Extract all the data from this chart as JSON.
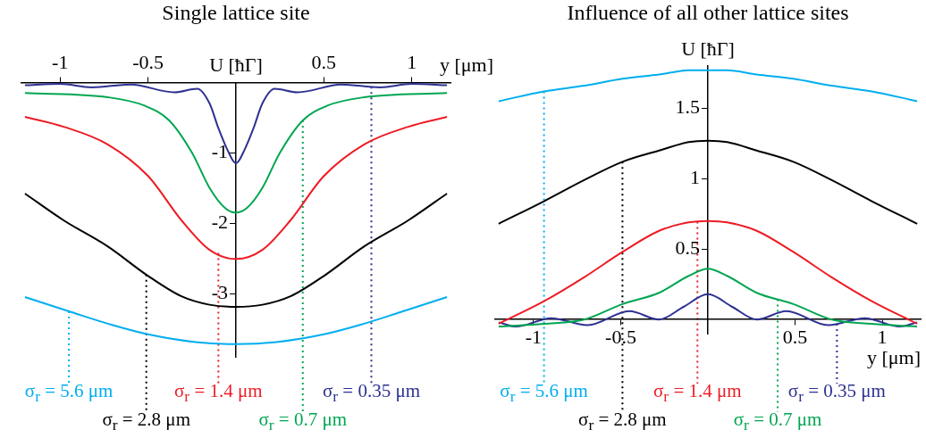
{
  "chart_data": [
    {
      "type": "line",
      "title": "Single lattice site",
      "xlabel": "y [μm]",
      "ylabel": "U [ħΓ]",
      "xlim": [
        -1.22,
        1.22
      ],
      "ylim": [
        -3.9,
        0
      ],
      "xticks": [
        -1,
        -0.5,
        0.5,
        1
      ],
      "yticks": [
        -1,
        -2,
        -3
      ],
      "series": [
        {
          "color": "#2e3192",
          "x": [
            -1.2,
            -1.0,
            -0.82,
            -0.6,
            -0.35,
            -0.22,
            -0.15,
            -0.1,
            -0.05,
            0,
            0.05,
            0.1,
            0.15,
            0.22,
            0.35,
            0.6,
            0.82,
            1.0,
            1.2
          ],
          "values": [
            -0.04,
            -0.02,
            -0.07,
            -0.03,
            -0.14,
            -0.09,
            -0.3,
            -0.65,
            -0.95,
            -1.15,
            -0.95,
            -0.65,
            -0.3,
            -0.09,
            -0.14,
            -0.03,
            -0.07,
            -0.02,
            -0.04
          ]
        },
        {
          "color": "#00a651",
          "x": [
            -1.2,
            -0.73,
            -0.52,
            -0.38,
            -0.25,
            -0.15,
            -0.06,
            0,
            0.06,
            0.15,
            0.25,
            0.38,
            0.52,
            0.73,
            1.2
          ],
          "values": [
            -0.15,
            -0.21,
            -0.33,
            -0.54,
            -1.0,
            -1.5,
            -1.79,
            -1.85,
            -1.79,
            -1.5,
            -1.0,
            -0.54,
            -0.33,
            -0.21,
            -0.15
          ]
        },
        {
          "color": "#ed1c24",
          "x": [
            -1.2,
            -0.98,
            -0.73,
            -0.5,
            -0.31,
            -0.15,
            0,
            0.15,
            0.31,
            0.5,
            0.73,
            0.98,
            1.2
          ],
          "values": [
            -0.49,
            -0.63,
            -0.88,
            -1.33,
            -1.96,
            -2.38,
            -2.51,
            -2.38,
            -1.96,
            -1.33,
            -0.88,
            -0.63,
            -0.49
          ]
        },
        {
          "color": "#000000",
          "x": [
            -1.2,
            -0.98,
            -0.73,
            -0.5,
            -0.31,
            -0.15,
            0,
            0.15,
            0.31,
            0.5,
            0.73,
            0.98,
            1.2
          ],
          "values": [
            -1.58,
            -1.96,
            -2.33,
            -2.75,
            -3.04,
            -3.16,
            -3.19,
            -3.16,
            -3.04,
            -2.75,
            -2.33,
            -1.96,
            -1.58
          ]
        },
        {
          "color": "#00aeef",
          "x": [
            -1.2,
            -0.93,
            -0.7,
            -0.5,
            -0.23,
            0,
            0.23,
            0.5,
            0.7,
            0.93,
            1.2
          ],
          "values": [
            -3.05,
            -3.27,
            -3.45,
            -3.58,
            -3.69,
            -3.72,
            -3.69,
            -3.58,
            -3.45,
            -3.27,
            -3.05
          ]
        }
      ],
      "ref_lines": [
        {
          "axis": "x",
          "value": -0.95,
          "color": "#00aeef",
          "line_style": "dotted"
        },
        {
          "axis": "x",
          "value": -0.51,
          "color": "#000000",
          "line_style": "dotted"
        },
        {
          "axis": "x",
          "value": -0.1,
          "color": "#ed1c24",
          "line_style": "dotted"
        },
        {
          "axis": "x",
          "value": 0.38,
          "color": "#00a651",
          "line_style": "dotted"
        },
        {
          "axis": "x",
          "value": 0.77,
          "color": "#2e3192",
          "line_style": "dotted"
        }
      ],
      "annotations": [
        "σ$_{r}$ = 5.6 μm",
        "σ$_{r}$ = 2.8 μm",
        "σ$_{r}$ = 1.4 μm",
        "σ$_{r}$ = 0.7 μm",
        "σ$_{r}$ = 0.35 μm"
      ]
    },
    {
      "type": "line",
      "title": "Influence of all other lattice sites",
      "xlabel": "y [μm]",
      "ylabel": "U [ħΓ]",
      "xlim": [
        -1.22,
        1.22
      ],
      "ylim": [
        -0.1,
        1.8
      ],
      "xticks": [
        -1,
        -0.5,
        0.5,
        1
      ],
      "yticks": [
        0.5,
        1,
        1.5
      ],
      "series": [
        {
          "color": "#00aeef",
          "x": [
            -1.2,
            -0.94,
            -0.71,
            -0.49,
            -0.28,
            -0.11,
            0,
            0.11,
            0.28,
            0.49,
            0.71,
            0.94,
            1.2
          ],
          "values": [
            1.55,
            1.62,
            1.66,
            1.71,
            1.74,
            1.77,
            1.77,
            1.77,
            1.74,
            1.71,
            1.66,
            1.62,
            1.55
          ]
        },
        {
          "color": "#000000",
          "x": [
            -1.2,
            -0.94,
            -0.71,
            -0.49,
            -0.28,
            -0.11,
            0,
            0.11,
            0.28,
            0.49,
            0.71,
            0.94,
            1.2
          ],
          "values": [
            0.68,
            0.84,
            0.99,
            1.12,
            1.2,
            1.26,
            1.27,
            1.26,
            1.2,
            1.12,
            0.99,
            0.84,
            0.68
          ]
        },
        {
          "color": "#ed1c24",
          "x": [
            -1.2,
            -0.94,
            -0.71,
            -0.49,
            -0.28,
            -0.11,
            0,
            0.11,
            0.28,
            0.49,
            0.71,
            0.94,
            1.2
          ],
          "values": [
            -0.03,
            0.13,
            0.3,
            0.48,
            0.63,
            0.69,
            0.7,
            0.69,
            0.63,
            0.48,
            0.3,
            0.13,
            -0.03
          ]
        },
        {
          "color": "#00a651",
          "x": [
            -1.2,
            -0.94,
            -0.71,
            -0.49,
            -0.28,
            -0.11,
            0,
            0.11,
            0.28,
            0.49,
            0.71,
            0.94,
            1.2
          ],
          "values": [
            -0.05,
            -0.03,
            0,
            0.11,
            0.19,
            0.31,
            0.36,
            0.31,
            0.19,
            0.11,
            0,
            -0.03,
            -0.05
          ]
        },
        {
          "color": "#2e3192",
          "x": [
            -1.2,
            -1.1,
            -0.9,
            -0.69,
            -0.45,
            -0.28,
            -0.14,
            0,
            0.14,
            0.28,
            0.45,
            0.69,
            0.9,
            1.1,
            1.2
          ],
          "values": [
            -0.02,
            -0.05,
            0.01,
            -0.04,
            0.06,
            0,
            0.09,
            0.18,
            0.09,
            0,
            0.06,
            -0.04,
            0.01,
            -0.05,
            -0.02
          ]
        }
      ],
      "ref_lines": [
        {
          "axis": "x",
          "value": -0.94,
          "color": "#00aeef",
          "line_style": "dotted"
        },
        {
          "axis": "x",
          "value": -0.49,
          "color": "#000000",
          "line_style": "dotted"
        },
        {
          "axis": "x",
          "value": -0.06,
          "color": "#ed1c24",
          "line_style": "dotted"
        },
        {
          "axis": "x",
          "value": 0.4,
          "color": "#00a651",
          "line_style": "dotted"
        }
      ],
      "annotations": [
        "σ$_{r}$ = 5.6 μm",
        "σ$_{r}$ = 2.8 μm",
        "σ$_{r}$ = 1.4 μm",
        "σ$_{r}$ = 0.7 μm",
        {
          "text": "σ$_{r}$ = 0.35 μm",
          "x": 0.74,
          "y": -0.03
        }
      ]
    }
  ]
}
